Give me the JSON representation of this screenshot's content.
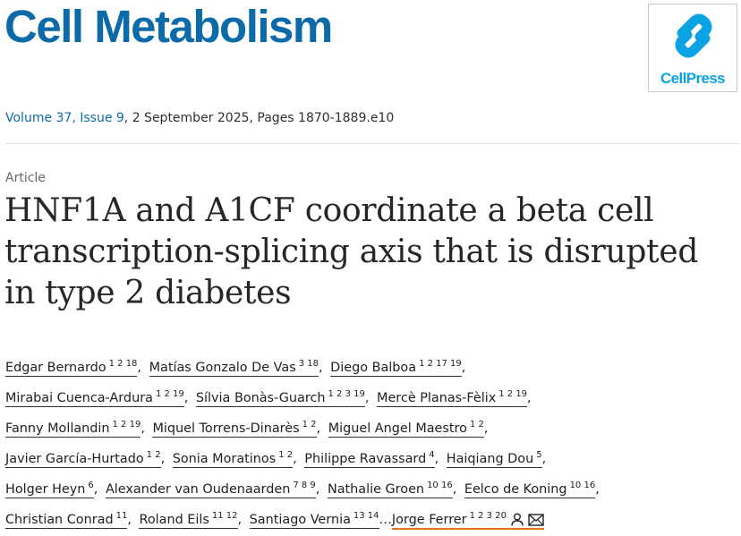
{
  "journal": {
    "name": "Cell Metabolism",
    "publisher_logo_text": "CellPress",
    "brand_color": "#0c6aa8",
    "logo_color": "#0aa3e4"
  },
  "citation": {
    "volume_issue": "Volume 37, Issue 9",
    "rest": ", 2 September 2025, Pages 1870-1889.e10"
  },
  "article": {
    "type": "Article",
    "title": "HNF1A and A1CF coordinate a beta cell transcription-splicing axis that is disrupted in type 2 diabetes"
  },
  "authors": [
    {
      "name": "Edgar Bernardo",
      "aff": "1 2 18"
    },
    {
      "name": "Matías Gonzalo De Vas",
      "aff": "3 18"
    },
    {
      "name": "Diego Balboa",
      "aff": "1 2 17 19"
    },
    {
      "name": "Mirabai Cuenca-Ardura",
      "aff": "1 2 19"
    },
    {
      "name": "Sílvia Bonàs-Guarch",
      "aff": "1 2 3 19"
    },
    {
      "name": "Mercè Planas-Fèlix",
      "aff": "1 2 19"
    },
    {
      "name": "Fanny Mollandin",
      "aff": "1 2 19"
    },
    {
      "name": "Miquel Torrens-Dinarès",
      "aff": "1 2"
    },
    {
      "name": "Miguel Angel Maestro",
      "aff": "1 2"
    },
    {
      "name": "Javier García-Hurtado",
      "aff": "1 2"
    },
    {
      "name": "Sonia Moratinos",
      "aff": "1 2"
    },
    {
      "name": "Philippe Ravassard",
      "aff": "4"
    },
    {
      "name": "Haiqiang Dou",
      "aff": "5"
    },
    {
      "name": "Holger Heyn",
      "aff": "6"
    },
    {
      "name": "Alexander van Oudenaarden",
      "aff": "7 8 9"
    },
    {
      "name": "Nathalie Groen",
      "aff": "10 16"
    },
    {
      "name": "Eelco de Koning",
      "aff": "10 16"
    },
    {
      "name": "Christian Conrad",
      "aff": "11"
    },
    {
      "name": "Roland Eils",
      "aff": "11 12"
    },
    {
      "name": "Santiago Vernia",
      "aff": "13 14"
    }
  ],
  "ellipsis": "…",
  "corresponding_author": {
    "name": "Jorge Ferrer",
    "aff": "1 2 3 20",
    "icons": [
      "person-icon",
      "mail-icon"
    ]
  },
  "separator": ","
}
